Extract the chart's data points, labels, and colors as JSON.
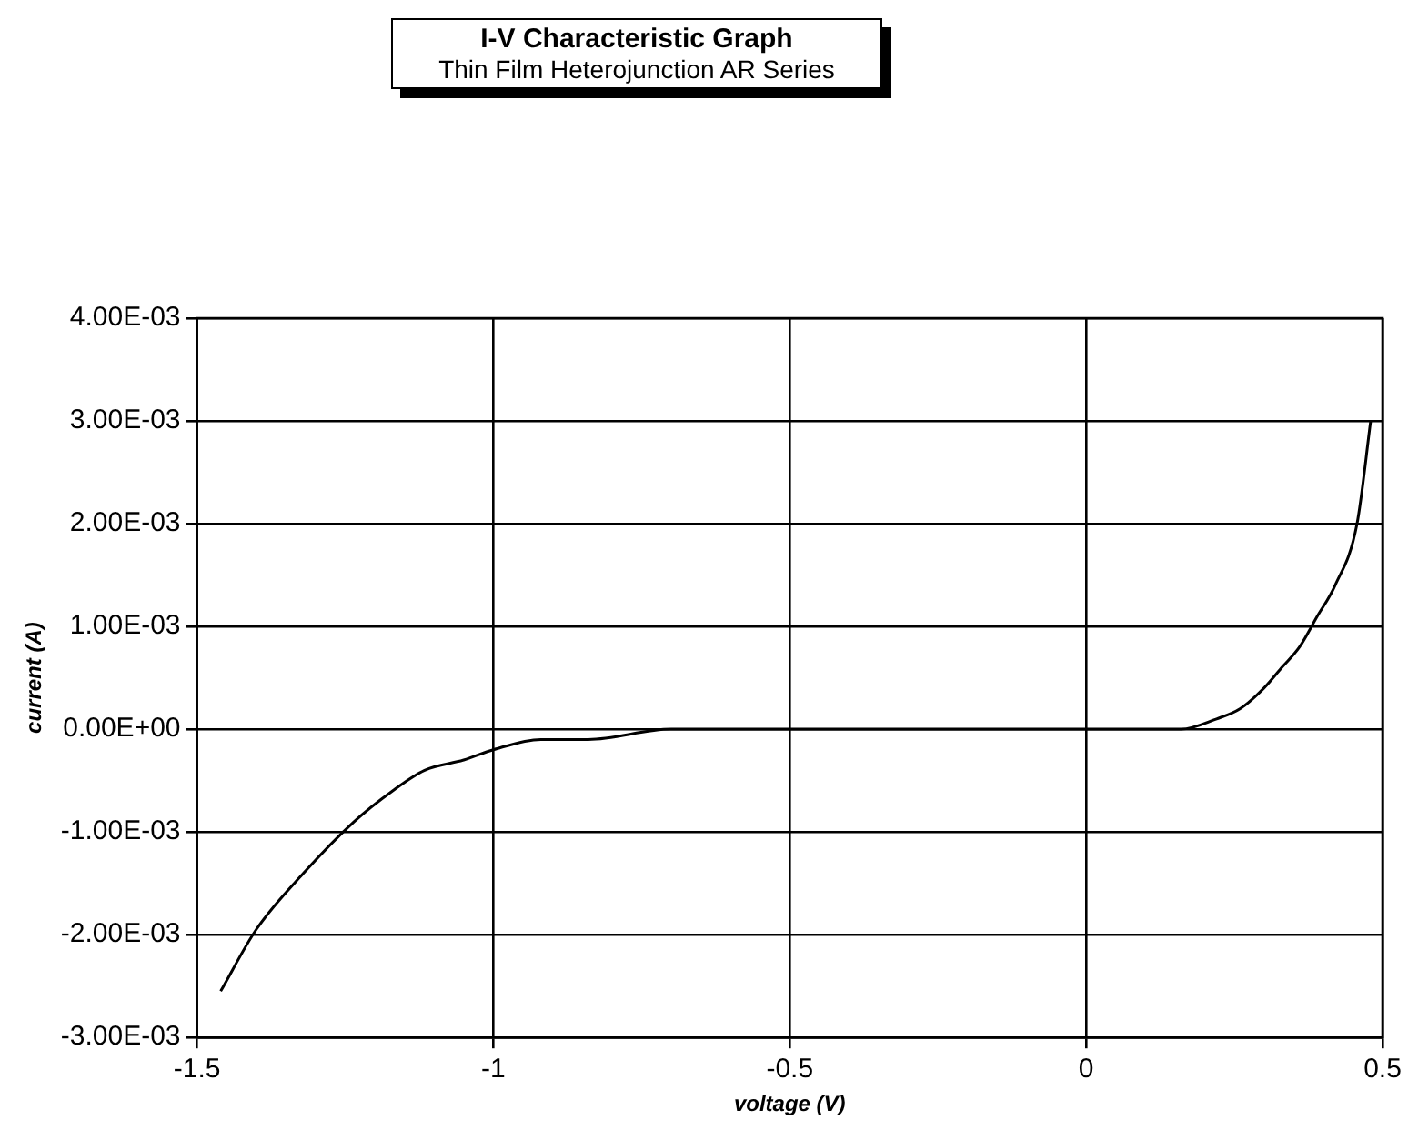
{
  "chart_data": {
    "type": "line",
    "title": "I-V Characteristic Graph",
    "subtitle": "Thin Film Heterojunction AR Series",
    "xlabel": "voltage (V)",
    "ylabel": "current (A)",
    "xlim": [
      -1.5,
      0.5
    ],
    "xticks": [
      -1.5,
      -1,
      -0.5,
      0,
      0.5
    ],
    "ylim": [
      -0.003,
      0.004
    ],
    "yticks": [
      {
        "value": -0.003,
        "label": "-3.00E-03"
      },
      {
        "value": -0.002,
        "label": "-2.00E-03"
      },
      {
        "value": -0.001,
        "label": "-1.00E-03"
      },
      {
        "value": 0,
        "label": "0.00E+00"
      },
      {
        "value": 0.001,
        "label": "1.00E-03"
      },
      {
        "value": 0.002,
        "label": "2.00E-03"
      },
      {
        "value": 0.003,
        "label": "3.00E-03"
      },
      {
        "value": 0.004,
        "label": "4.00E-03"
      }
    ],
    "grid": true,
    "legend": false,
    "marker": "none",
    "line_style": "solid",
    "series": [
      {
        "color": "#000000",
        "x": [
          -1.46,
          -1.4,
          -1.32,
          -1.235,
          -1.17,
          -1.116,
          -1.05,
          -1.0,
          -0.92,
          -0.84,
          -0.7,
          -0.5,
          -0.2,
          0,
          0.16,
          0.22,
          0.26,
          0.3,
          0.33,
          0.36,
          0.39,
          0.42,
          0.457,
          0.48
        ],
        "values": [
          -0.00255,
          -0.00195,
          -0.0014,
          -0.0009,
          -0.0006,
          -0.0004,
          -0.0003,
          -0.0002,
          -0.0001,
          -0.0001,
          0,
          0,
          0,
          0,
          0,
          0.0001,
          0.0002,
          0.0004,
          0.0006,
          0.0008,
          0.0011,
          0.0014,
          0.002,
          0.003
        ]
      }
    ]
  }
}
